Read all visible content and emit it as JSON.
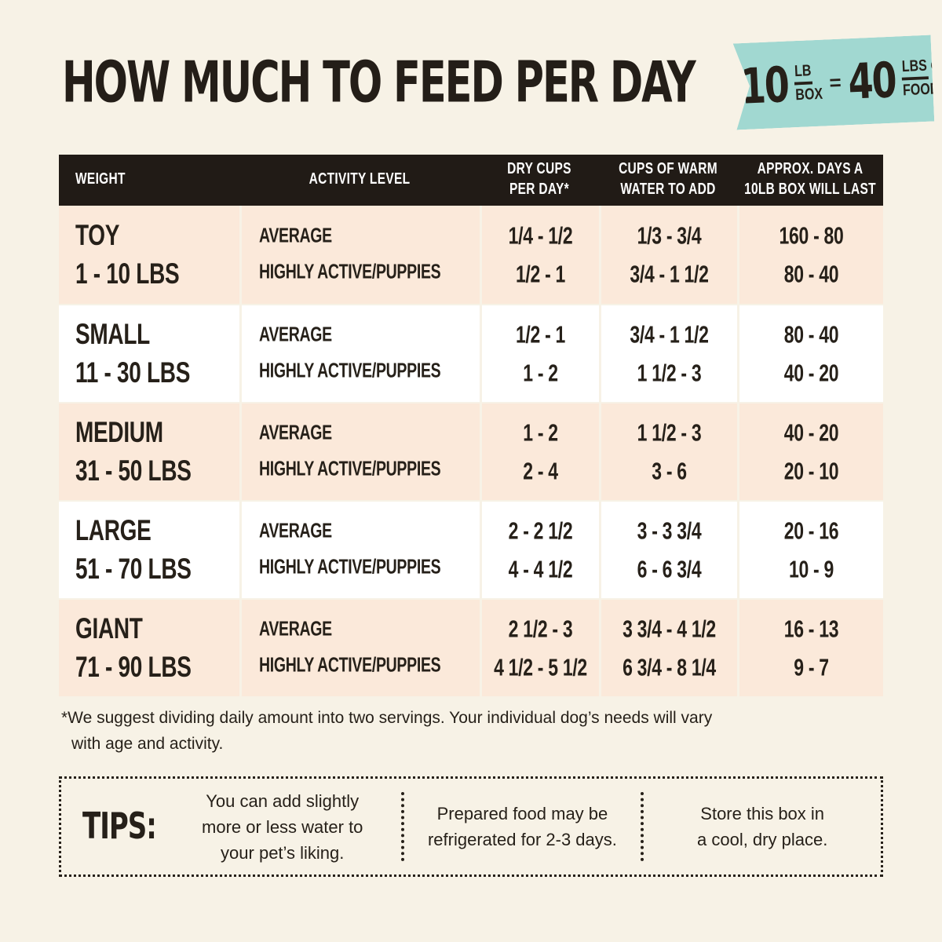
{
  "page_background": "#f7f2e6",
  "title": "HOW MUCH TO FEED PER DAY",
  "banner": {
    "color": "#a1d8d1",
    "box_value": "10",
    "box_unit_top": "LB",
    "box_unit_bottom": "BOX",
    "equals_sign": "=",
    "food_value": "40",
    "food_unit_top": "LBS",
    "food_unit_script": "of",
    "food_unit_bottom": "FOOD!"
  },
  "table": {
    "header_bg": "#211b16",
    "row_alt_bg": "#fbe9da",
    "headers": [
      "WEIGHT",
      "ACTIVITY LEVEL",
      "DRY CUPS\nPER DAY*",
      "CUPS OF WARM\nWATER TO ADD",
      "APPROX. DAYS A\n10LB BOX WILL LAST"
    ],
    "rows": [
      {
        "weight_name": "TOY",
        "weight_range": "1 - 10 LBS",
        "activity_average": "AVERAGE",
        "activity_high": "HIGHLY ACTIVE/PUPPIES",
        "dry_cups_average": "1/4 - 1/2",
        "dry_cups_high": "1/2 - 1",
        "water_average": "1/3 - 3/4",
        "water_high": "3/4 - 1 1/2",
        "days_average": "160 - 80",
        "days_high": "80 - 40"
      },
      {
        "weight_name": "SMALL",
        "weight_range": "11 - 30 LBS",
        "activity_average": "AVERAGE",
        "activity_high": "HIGHLY ACTIVE/PUPPIES",
        "dry_cups_average": "1/2 - 1",
        "dry_cups_high": "1 - 2",
        "water_average": "3/4 - 1 1/2",
        "water_high": "1 1/2 - 3",
        "days_average": "80 - 40",
        "days_high": "40 - 20"
      },
      {
        "weight_name": "MEDIUM",
        "weight_range": "31 - 50 LBS",
        "activity_average": "AVERAGE",
        "activity_high": "HIGHLY ACTIVE/PUPPIES",
        "dry_cups_average": "1 - 2",
        "dry_cups_high": "2 - 4",
        "water_average": "1 1/2 - 3",
        "water_high": "3 - 6",
        "days_average": "40 - 20",
        "days_high": "20 - 10"
      },
      {
        "weight_name": "LARGE",
        "weight_range": "51 - 70 LBS",
        "activity_average": "AVERAGE",
        "activity_high": "HIGHLY ACTIVE/PUPPIES",
        "dry_cups_average": "2 - 2 1/2",
        "dry_cups_high": "4 - 4 1/2",
        "water_average": "3 - 3 3/4",
        "water_high": "6 - 6 3/4",
        "days_average": "20 - 16",
        "days_high": "10 - 9"
      },
      {
        "weight_name": "GIANT",
        "weight_range": "71 - 90 LBS",
        "activity_average": "AVERAGE",
        "activity_high": "HIGHLY ACTIVE/PUPPIES",
        "dry_cups_average": "2 1/2 - 3",
        "dry_cups_high": "4 1/2 - 5 1/2",
        "water_average": "3 3/4 - 4 1/2",
        "water_high": "6 3/4 - 8 1/4",
        "days_average": "16 - 13",
        "days_high": "9 - 7"
      }
    ]
  },
  "footnote": {
    "line1": "*We suggest dividing daily amount into two servings. Your individual dog’s needs will vary",
    "line2": "with age and activity."
  },
  "tips": {
    "label": "TIPS:",
    "items": [
      "You can add slightly\nmore or less water to\nyour pet’s liking.",
      "Prepared food may be\nrefrigerated for 2-3 days.",
      "Store this box in\na cool, dry place."
    ]
  }
}
